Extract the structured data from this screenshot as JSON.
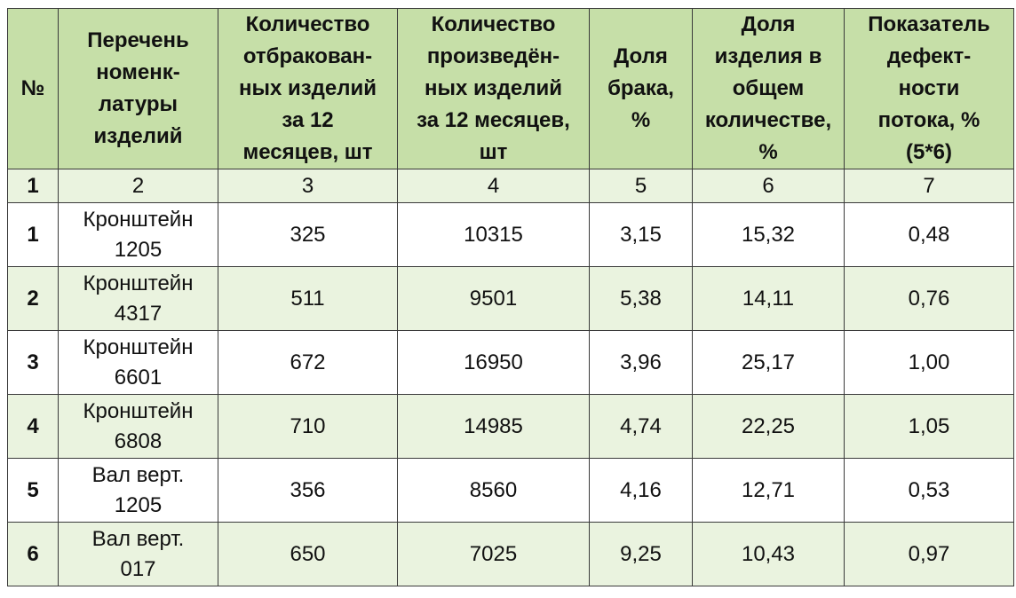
{
  "table": {
    "headers": [
      [
        "№"
      ],
      [
        "Перечень",
        "номенк-",
        "латуры",
        "изделий"
      ],
      [
        "Количество",
        "отбракован-",
        "ных изделий",
        "за 12",
        "месяцев, шт"
      ],
      [
        "Количество",
        "произведён-",
        "ных изделий",
        "за 12 месяцев,",
        "шт"
      ],
      [
        "Доля",
        "брака,",
        "%"
      ],
      [
        "Доля",
        "изделия в",
        "общем",
        "количестве,",
        "%"
      ],
      [
        "Показатель",
        "дефект-",
        "ности",
        "потока, %",
        "(5*6)"
      ]
    ],
    "index_row": [
      "1",
      "2",
      "3",
      "4",
      "5",
      "6",
      "7"
    ],
    "rows": [
      {
        "num": "1",
        "name": [
          "Кронштейн",
          "1205"
        ],
        "rejected": "325",
        "produced": "10315",
        "defect_share": "3,15",
        "item_share": "15,32",
        "flow_defect": "0,48"
      },
      {
        "num": "2",
        "name": [
          "Кронштейн",
          "4317"
        ],
        "rejected": "511",
        "produced": "9501",
        "defect_share": "5,38",
        "item_share": "14,11",
        "flow_defect": "0,76"
      },
      {
        "num": "3",
        "name": [
          "Кронштейн",
          "6601"
        ],
        "rejected": "672",
        "produced": "16950",
        "defect_share": "3,96",
        "item_share": "25,17",
        "flow_defect": "1,00"
      },
      {
        "num": "4",
        "name": [
          "Кронштейн",
          "6808"
        ],
        "rejected": "710",
        "produced": "14985",
        "defect_share": "4,74",
        "item_share": "22,25",
        "flow_defect": "1,05"
      },
      {
        "num": "5",
        "name": [
          "Вал верт.",
          "1205"
        ],
        "rejected": "356",
        "produced": "8560",
        "defect_share": "4,16",
        "item_share": "12,71",
        "flow_defect": "0,53"
      },
      {
        "num": "6",
        "name": [
          "Вал верт.",
          "017"
        ],
        "rejected": "650",
        "produced": "7025",
        "defect_share": "9,25",
        "item_share": "10,43",
        "flow_defect": "0,97"
      }
    ]
  }
}
